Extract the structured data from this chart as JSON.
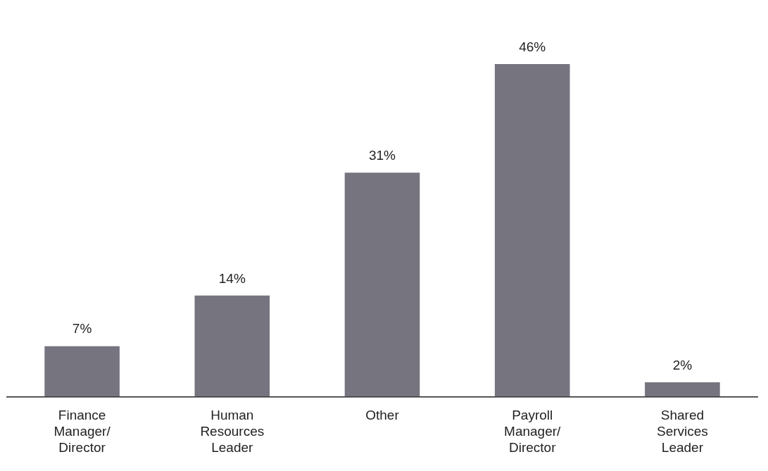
{
  "chart_data": {
    "type": "bar",
    "categories": [
      "Finance Manager/Director",
      "Human Resources Leader",
      "Other",
      "Payroll Manager/Director",
      "Shared Services Leader"
    ],
    "values": [
      7,
      14,
      31,
      46,
      2
    ],
    "value_labels": [
      "7%",
      "14%",
      "31%",
      "46%",
      "2%"
    ],
    "color": "#75747f",
    "grid": false,
    "legend": false
  }
}
